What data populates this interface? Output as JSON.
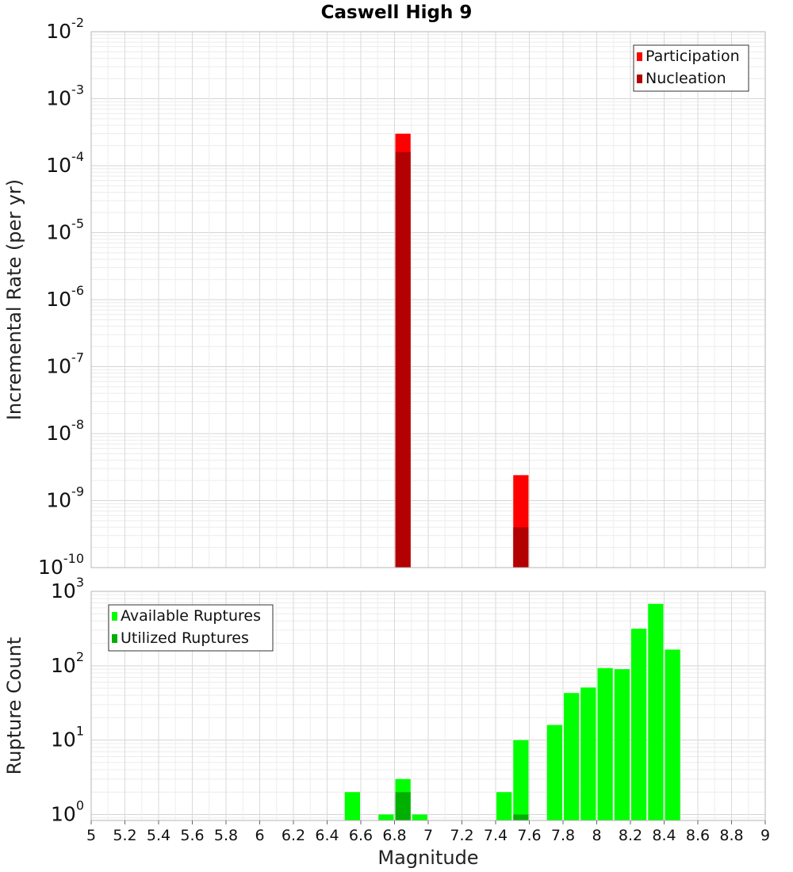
{
  "chart_data": {
    "title": "Caswell High 9",
    "xlabel": "Magnitude",
    "xlim": [
      5,
      9
    ],
    "xticks": [
      "5",
      "5.2",
      "5.4",
      "5.6",
      "5.8",
      "6",
      "6.2",
      "6.4",
      "6.6",
      "6.8",
      "7",
      "7.2",
      "7.4",
      "7.6",
      "7.8",
      "8",
      "8.2",
      "8.4",
      "8.6",
      "8.8",
      "9"
    ],
    "bin_width": 0.1,
    "panels": [
      {
        "type": "bar",
        "scale": "log",
        "ylabel": "Incremental Rate (per yr)",
        "ylim_exp": [
          -10,
          -2
        ],
        "ytick_base": "10",
        "yticks_exp": [
          "-10",
          "-9",
          "-8",
          "-7",
          "-6",
          "-5",
          "-4",
          "-3",
          "-2"
        ],
        "legend_position": "top-right",
        "series": [
          {
            "name": "Participation",
            "color": "#ff0000",
            "x": [
              6.85,
              7.55
            ],
            "values": [
              0.0003,
              2.4e-09
            ]
          },
          {
            "name": "Nucleation",
            "color": "#b30000",
            "x": [
              6.85,
              7.55
            ],
            "values": [
              0.00016,
              4e-10
            ]
          }
        ]
      },
      {
        "type": "bar",
        "scale": "log",
        "ylabel": "Rupture Count",
        "ylim_exp": [
          -0.08,
          3
        ],
        "ytick_base": "10",
        "yticks_exp": [
          "0",
          "1",
          "2",
          "3"
        ],
        "legend_position": "top-left",
        "series": [
          {
            "name": "Available Ruptures",
            "color": "#00ff00",
            "x": [
              6.55,
              6.75,
              6.85,
              6.95,
              7.45,
              7.55,
              7.75,
              7.85,
              7.95,
              8.05,
              8.15,
              8.25,
              8.35,
              8.45
            ],
            "values": [
              2,
              1,
              3,
              1,
              2,
              10,
              16,
              43,
              51,
              93,
              90,
              315,
              680,
              165
            ]
          },
          {
            "name": "Utilized Ruptures",
            "color": "#00b000",
            "x": [
              6.85,
              7.55
            ],
            "values": [
              2,
              1
            ]
          }
        ]
      }
    ]
  }
}
